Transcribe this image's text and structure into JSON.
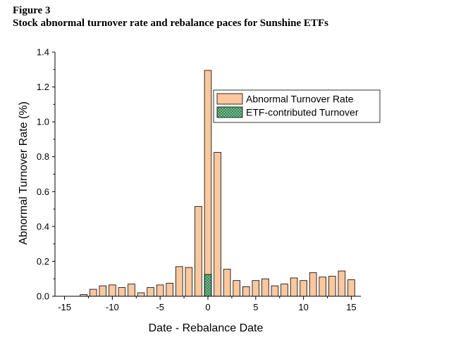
{
  "figure": {
    "label": "Figure 3",
    "title": "Stock abnormal turnover rate and rebalance paces for Sunshine ETFs"
  },
  "chart_data": {
    "type": "bar",
    "xlabel": "Date - Rebalance Date",
    "ylabel": "Abnormal Turnover Rate (%)",
    "xlim": [
      -16,
      16
    ],
    "ylim": [
      0,
      1.4
    ],
    "xticks": [
      -15,
      -10,
      -5,
      0,
      5,
      10,
      15
    ],
    "yticks": [
      0.0,
      0.2,
      0.4,
      0.6,
      0.8,
      1.0,
      1.2,
      1.4
    ],
    "ytick_labels": [
      "0.0",
      "0.2",
      "0.4",
      "0.6",
      "0.8",
      "1.0",
      "1.2",
      "1.4"
    ],
    "grid": false,
    "legend_position": "top-right",
    "x": [
      -15,
      -14,
      -13,
      -12,
      -11,
      -10,
      -9,
      -8,
      -7,
      -6,
      -5,
      -4,
      -3,
      -2,
      -1,
      0,
      1,
      2,
      3,
      4,
      5,
      6,
      7,
      8,
      9,
      10,
      11,
      12,
      13,
      14,
      15
    ],
    "series": [
      {
        "name": "Abnormal Turnover Rate",
        "color": "#fbc79b",
        "values": [
          0.0,
          0.0,
          0.01,
          0.04,
          0.06,
          0.065,
          0.05,
          0.07,
          0.02,
          0.05,
          0.065,
          0.075,
          0.17,
          0.165,
          0.515,
          1.295,
          0.825,
          0.155,
          0.09,
          0.055,
          0.09,
          0.1,
          0.06,
          0.07,
          0.105,
          0.09,
          0.135,
          0.11,
          0.115,
          0.145,
          0.095
        ]
      },
      {
        "name": "ETF-contributed Turnover",
        "color": "#7fc89a",
        "pattern": "crosshatch",
        "values": [
          0,
          0,
          0,
          0,
          0,
          0,
          0,
          0,
          0,
          0,
          0,
          0,
          0,
          0,
          0,
          0.125,
          0,
          0,
          0,
          0,
          0,
          0,
          0,
          0,
          0,
          0,
          0,
          0,
          0,
          0,
          0
        ]
      }
    ]
  }
}
